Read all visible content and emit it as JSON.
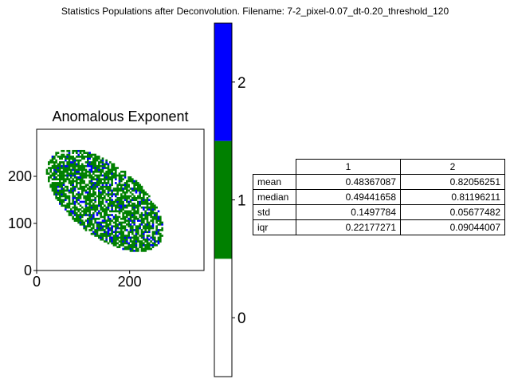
{
  "figure": {
    "title": "Statistics Populations after Deconvolution. Filename: 7-2_pixel-0.07_dt-0.20_threshold_120"
  },
  "chart_data": [
    {
      "type": "heatmap",
      "title": "Anomalous Exponent",
      "xlabel": "",
      "ylabel": "",
      "xlim": [
        0,
        360
      ],
      "ylim": [
        0,
        300
      ],
      "x_ticks": [
        "0",
        "200"
      ],
      "y_ticks": [
        "0",
        "100",
        "200"
      ],
      "region": {
        "shape": "ellipse",
        "center_x": 145,
        "center_y": 147,
        "semi_axis_major": 148,
        "semi_axis_minor": 75,
        "rotation_deg": -38
      },
      "populations": [
        {
          "label": "0",
          "color": "#ffffff"
        },
        {
          "label": "1",
          "color": "#008000"
        },
        {
          "label": "2",
          "color": "#0000ff"
        }
      ],
      "approx_fractions": {
        "1": 0.62,
        "2": 0.1
      }
    },
    {
      "type": "colorbar",
      "ticks": [
        "0",
        "1",
        "2"
      ],
      "colors": [
        "#ffffff",
        "#008000",
        "#0000ff"
      ]
    },
    {
      "type": "table",
      "columns": [
        "1",
        "2"
      ],
      "rows": [
        {
          "label": "mean",
          "values": [
            "0.48367087",
            "0.82056251"
          ]
        },
        {
          "label": "median",
          "values": [
            "0.49441658",
            "0.81196211"
          ]
        },
        {
          "label": "std",
          "values": [
            "0.1497784",
            "0.05677482"
          ]
        },
        {
          "label": "iqr",
          "values": [
            "0.22177271",
            "0.09044007"
          ]
        }
      ]
    }
  ]
}
